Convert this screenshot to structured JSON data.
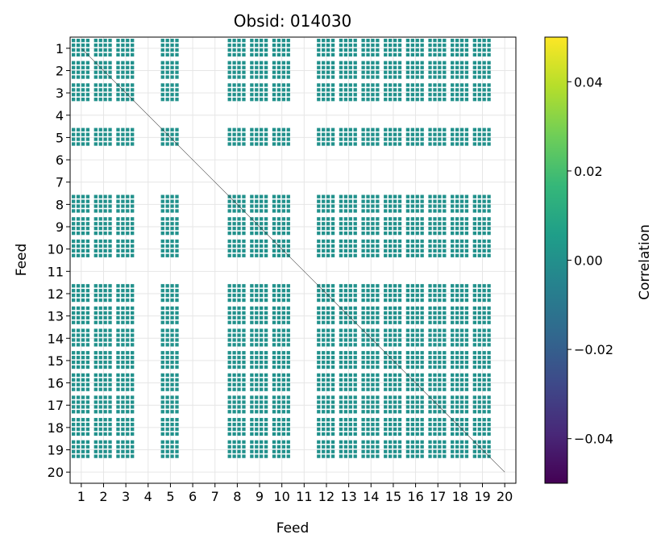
{
  "chart_data": {
    "type": "heatmap",
    "title": "Obsid: 014030",
    "xlabel": "Feed",
    "ylabel": "Feed",
    "x_ticks": [
      "1",
      "2",
      "3",
      "4",
      "5",
      "6",
      "7",
      "8",
      "9",
      "10",
      "11",
      "12",
      "13",
      "14",
      "15",
      "16",
      "17",
      "18",
      "19",
      "20"
    ],
    "y_ticks": [
      "1",
      "2",
      "3",
      "4",
      "5",
      "6",
      "7",
      "8",
      "9",
      "10",
      "11",
      "12",
      "13",
      "14",
      "15",
      "16",
      "17",
      "18",
      "19",
      "20"
    ],
    "feeds": [
      1,
      2,
      3,
      4,
      5,
      6,
      7,
      8,
      9,
      10,
      11,
      12,
      13,
      14,
      15,
      16,
      17,
      18,
      19,
      20
    ],
    "active_feeds": [
      1,
      2,
      3,
      5,
      8,
      9,
      10,
      12,
      13,
      14,
      15,
      16,
      17,
      18,
      19
    ],
    "inactive_feeds": [
      4,
      6,
      7,
      11,
      20
    ],
    "cell_value": 0.0,
    "grid": true,
    "colorbar": {
      "label": "Correlation",
      "cmap": "viridis",
      "vmin": -0.05,
      "vmax": 0.05,
      "ticks": [
        -0.04,
        -0.02,
        0.0,
        0.02,
        0.04
      ],
      "tick_labels": [
        "−0.04",
        "−0.02",
        "0.00",
        "0.02",
        "0.04"
      ]
    },
    "colors": {
      "cell": "#21918c",
      "cmap_stops": [
        "#440154",
        "#482878",
        "#3e4989",
        "#31688e",
        "#26828e",
        "#1f9e89",
        "#35b779",
        "#6ece58",
        "#b5de2b",
        "#fde725"
      ]
    }
  }
}
